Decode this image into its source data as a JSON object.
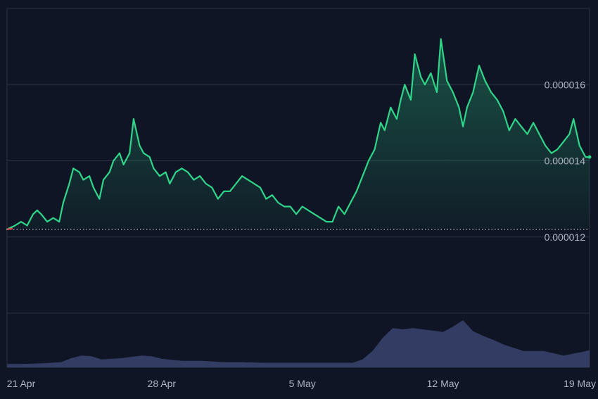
{
  "colors": {
    "background": "#0f1524",
    "grid": "#2a3142",
    "price_line": "#2fd68a",
    "price_line_down": "#e0454f",
    "baseline_dots": "#c9ccd4",
    "volume_fill": "#3a4470",
    "tick_text": "#aeb4c2"
  },
  "chart_data": {
    "type": "line",
    "x_tick_labels": [
      "21 Apr",
      "28 Apr",
      "5 May",
      "12 May",
      "19 May"
    ],
    "x_tick_days": [
      0,
      7,
      14,
      21,
      28
    ],
    "y_tick_labels": [
      "0.000016",
      "0.000014",
      "0.000012"
    ],
    "y_tick_values": [
      1.6e-05,
      1.4e-05,
      1.2e-05
    ],
    "y_range": [
      1e-05,
      1.8e-05
    ],
    "x_range_days": [
      -0.7,
      28.3
    ],
    "baseline_value": 1.22e-05,
    "grid": true,
    "series": [
      {
        "kind": "price",
        "x_days": [
          -0.7,
          -0.3,
          0.0,
          0.3,
          0.6,
          0.8,
          1.0,
          1.3,
          1.6,
          1.9,
          2.1,
          2.4,
          2.6,
          2.9,
          3.1,
          3.4,
          3.6,
          3.9,
          4.1,
          4.4,
          4.6,
          4.9,
          5.1,
          5.4,
          5.6,
          5.9,
          6.1,
          6.4,
          6.6,
          6.9,
          7.2,
          7.4,
          7.7,
          8.0,
          8.3,
          8.6,
          8.9,
          9.2,
          9.5,
          9.8,
          10.1,
          10.4,
          10.7,
          11.0,
          11.3,
          11.6,
          11.9,
          12.2,
          12.5,
          12.8,
          13.1,
          13.4,
          13.7,
          14.0,
          14.3,
          14.6,
          14.9,
          15.2,
          15.5,
          15.8,
          16.1,
          16.4,
          16.7,
          17.0,
          17.3,
          17.6,
          17.9,
          18.1,
          18.4,
          18.7,
          18.9,
          19.1,
          19.4,
          19.6,
          19.9,
          20.1,
          20.4,
          20.7,
          20.9,
          21.2,
          21.5,
          21.8,
          22.0,
          22.2,
          22.5,
          22.8,
          23.1,
          23.4,
          23.7,
          24.0,
          24.3,
          24.6,
          24.9,
          25.2,
          25.5,
          25.8,
          26.1,
          26.4,
          26.7,
          27.0,
          27.3,
          27.5,
          27.8,
          28.1,
          28.3
        ],
        "values": [
          1.22e-05,
          1.23e-05,
          1.24e-05,
          1.23e-05,
          1.26e-05,
          1.27e-05,
          1.26e-05,
          1.24e-05,
          1.25e-05,
          1.24e-05,
          1.29e-05,
          1.34e-05,
          1.38e-05,
          1.37e-05,
          1.35e-05,
          1.36e-05,
          1.33e-05,
          1.3e-05,
          1.35e-05,
          1.37e-05,
          1.4e-05,
          1.42e-05,
          1.39e-05,
          1.42e-05,
          1.51e-05,
          1.44e-05,
          1.42e-05,
          1.41e-05,
          1.38e-05,
          1.36e-05,
          1.37e-05,
          1.34e-05,
          1.37e-05,
          1.38e-05,
          1.37e-05,
          1.35e-05,
          1.36e-05,
          1.34e-05,
          1.33e-05,
          1.3e-05,
          1.32e-05,
          1.32e-05,
          1.34e-05,
          1.36e-05,
          1.35e-05,
          1.34e-05,
          1.33e-05,
          1.3e-05,
          1.31e-05,
          1.29e-05,
          1.28e-05,
          1.28e-05,
          1.26e-05,
          1.28e-05,
          1.27e-05,
          1.26e-05,
          1.25e-05,
          1.24e-05,
          1.24e-05,
          1.28e-05,
          1.26e-05,
          1.29e-05,
          1.32e-05,
          1.36e-05,
          1.4e-05,
          1.43e-05,
          1.5e-05,
          1.48e-05,
          1.54e-05,
          1.51e-05,
          1.56e-05,
          1.6e-05,
          1.56e-05,
          1.68e-05,
          1.62e-05,
          1.6e-05,
          1.63e-05,
          1.58e-05,
          1.72e-05,
          1.61e-05,
          1.58e-05,
          1.54e-05,
          1.49e-05,
          1.54e-05,
          1.58e-05,
          1.65e-05,
          1.61e-05,
          1.58e-05,
          1.56e-05,
          1.53e-05,
          1.48e-05,
          1.51e-05,
          1.49e-05,
          1.47e-05,
          1.5e-05,
          1.47e-05,
          1.44e-05,
          1.42e-05,
          1.43e-05,
          1.45e-05,
          1.47e-05,
          1.51e-05,
          1.44e-05,
          1.41e-05,
          1.41e-05
        ]
      },
      {
        "kind": "volume",
        "x_days": [
          -0.7,
          0.0,
          1.0,
          2.0,
          2.5,
          3.0,
          3.5,
          4.0,
          5.0,
          6.0,
          6.5,
          7.0,
          8.0,
          9.0,
          10.0,
          11.0,
          12.0,
          13.0,
          14.0,
          15.0,
          16.0,
          16.5,
          17.0,
          17.5,
          18.0,
          18.5,
          19.0,
          19.5,
          20.0,
          20.5,
          21.0,
          21.5,
          22.0,
          22.5,
          23.0,
          23.5,
          24.0,
          25.0,
          26.0,
          27.0,
          28.0,
          28.3
        ],
        "values": [
          5,
          5,
          6,
          8,
          14,
          18,
          17,
          12,
          14,
          18,
          17,
          13,
          10,
          10,
          8,
          8,
          7,
          7,
          7,
          7,
          7,
          7,
          12,
          25,
          45,
          60,
          58,
          60,
          58,
          56,
          54,
          62,
          72,
          55,
          48,
          42,
          35,
          25,
          25,
          18,
          24,
          26
        ]
      }
    ]
  }
}
